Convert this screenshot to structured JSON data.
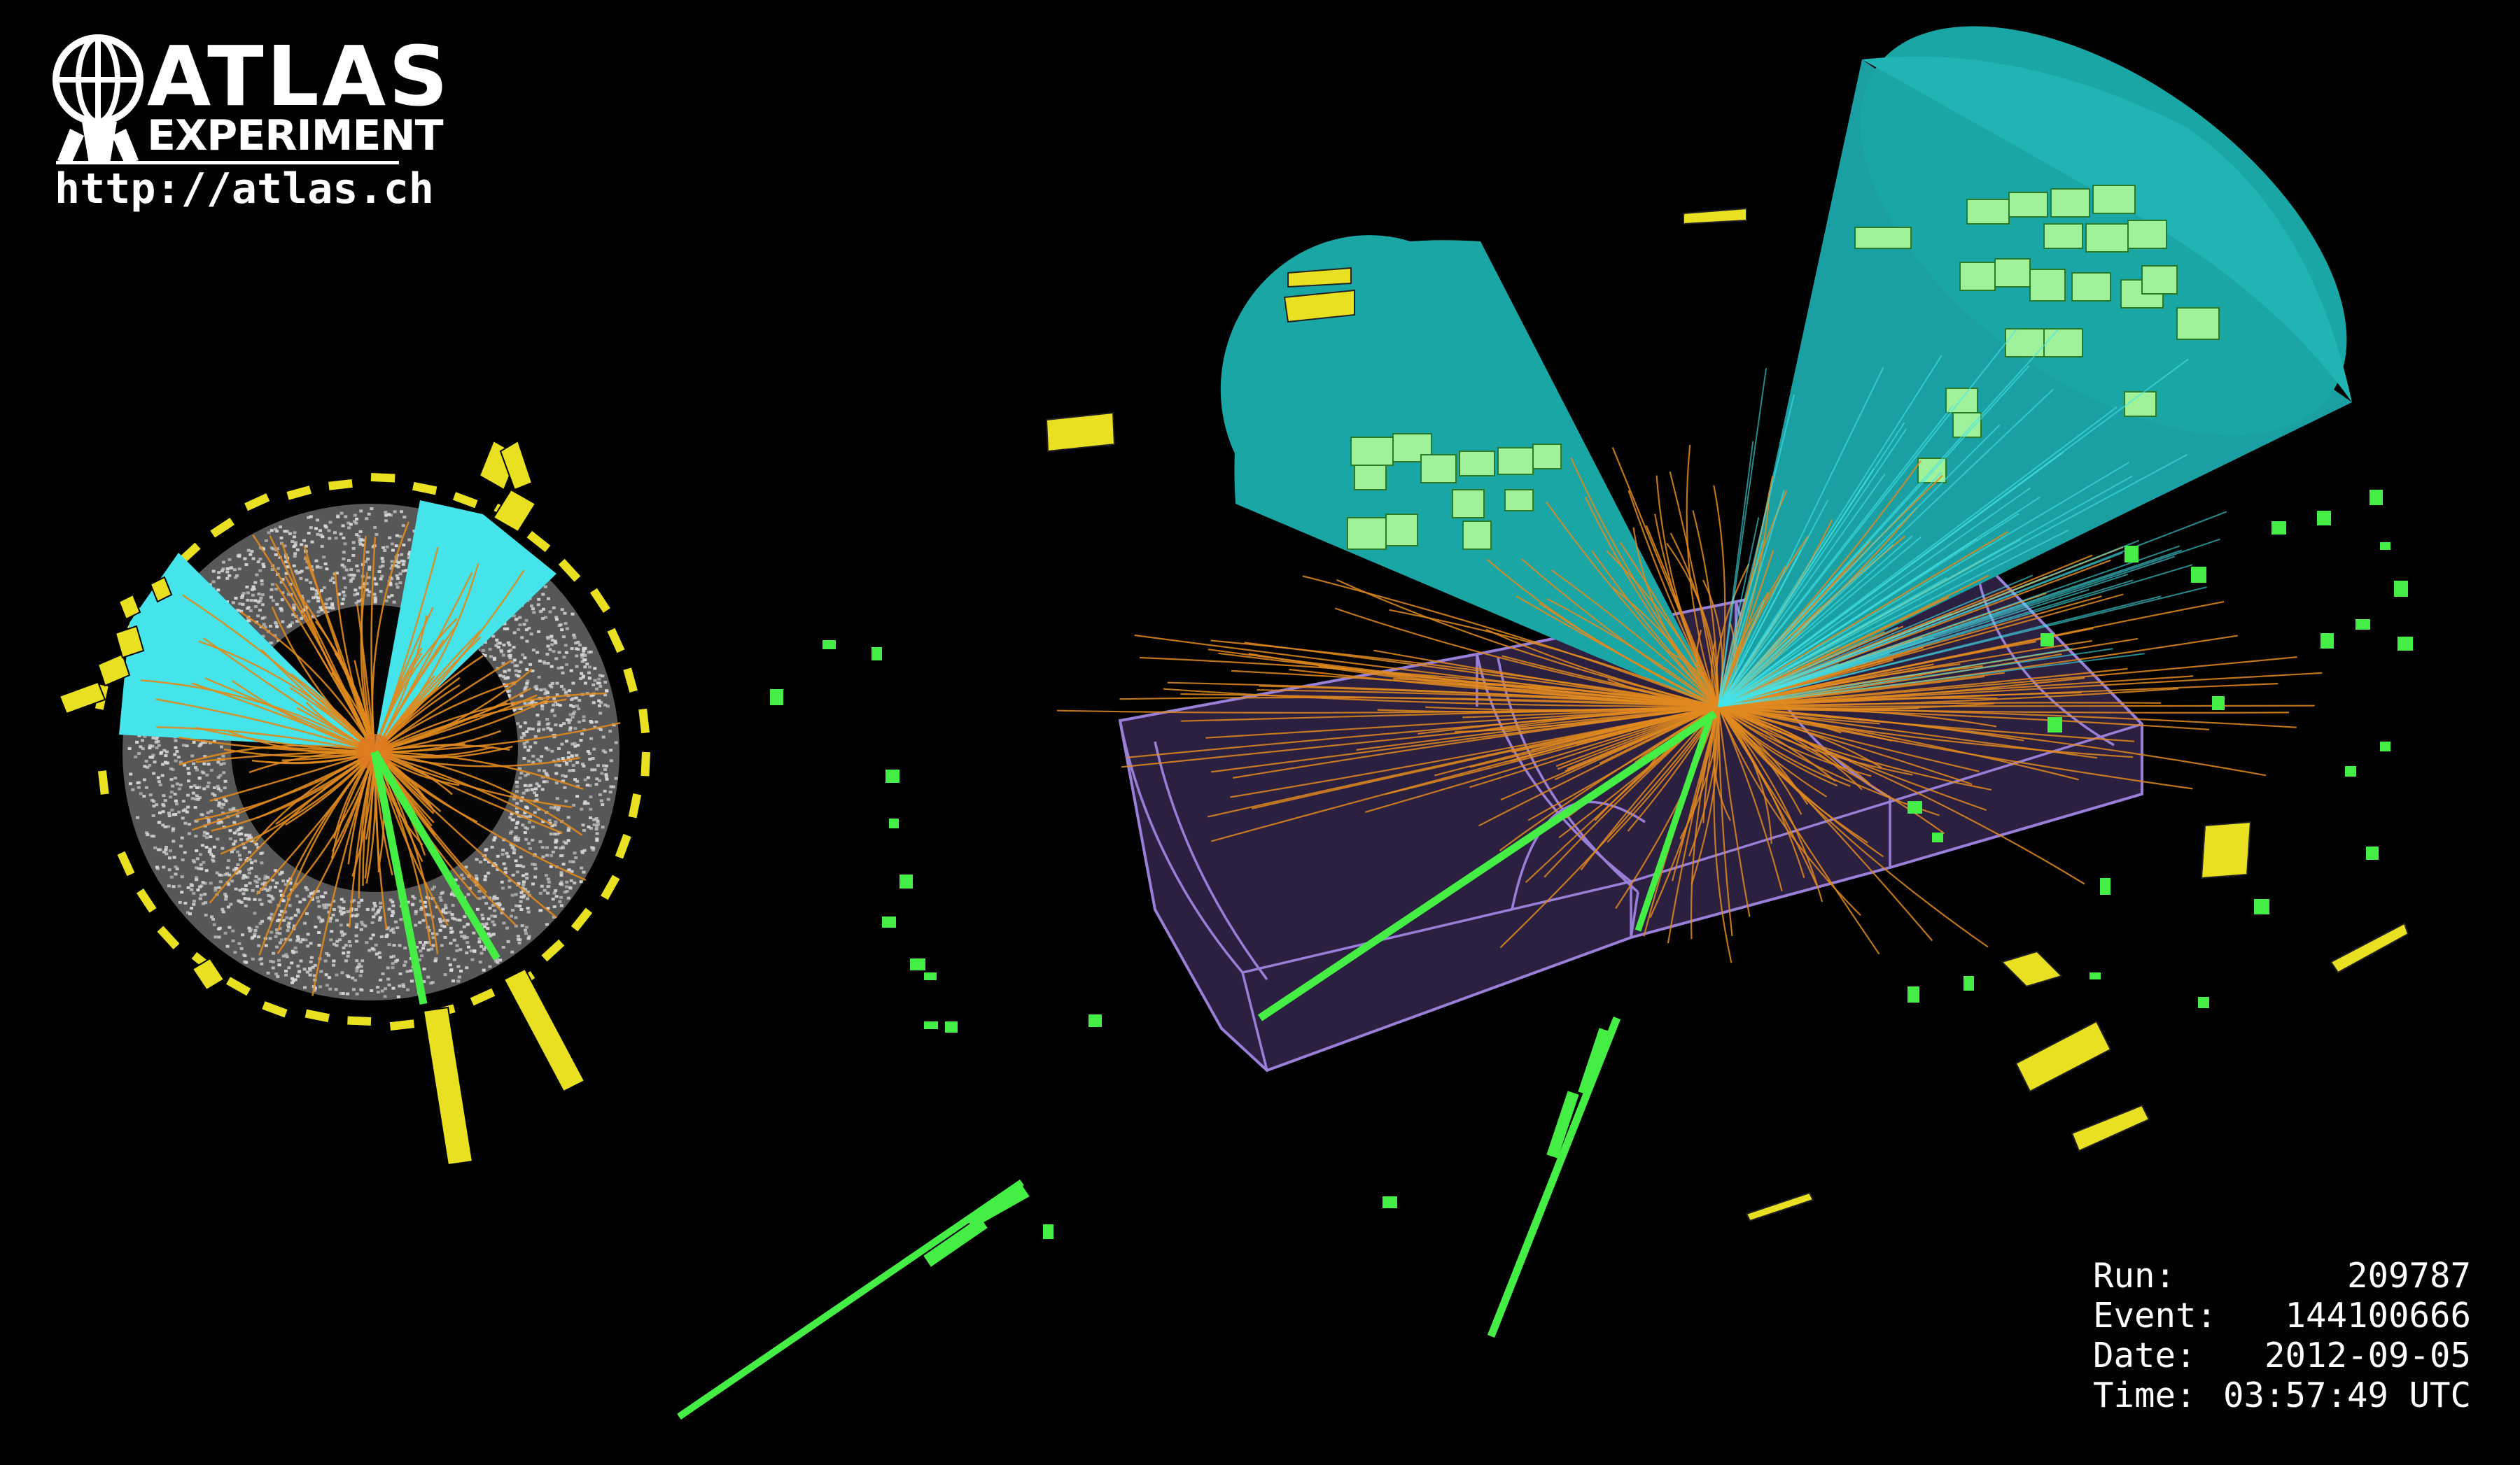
{
  "logo": {
    "name": "ATLAS",
    "subtitle": "EXPERIMENT",
    "url": "http://atlas.ch"
  },
  "event_info": {
    "rows": [
      {
        "label": "Run:",
        "value": "209787"
      },
      {
        "label": "Event:",
        "value": "144100666"
      },
      {
        "label": "Date:",
        "value": "2012-09-05"
      },
      {
        "label": "Time:",
        "value": "03:57:49 UTC"
      }
    ]
  },
  "colors": {
    "background": "#000000",
    "track_orange": "#e08a1e",
    "muon_green": "#44ee44",
    "calorimeter_yellow": "#e8e020",
    "jet_cone_teal": "#1ba6a6",
    "jet_cone_cyan": "#44e4ea",
    "cell_green": "#9ff29a",
    "barrel_purple": "#2c2040",
    "barrel_outline": "#9a7fd8",
    "hits_white": "#d8d8d8"
  }
}
